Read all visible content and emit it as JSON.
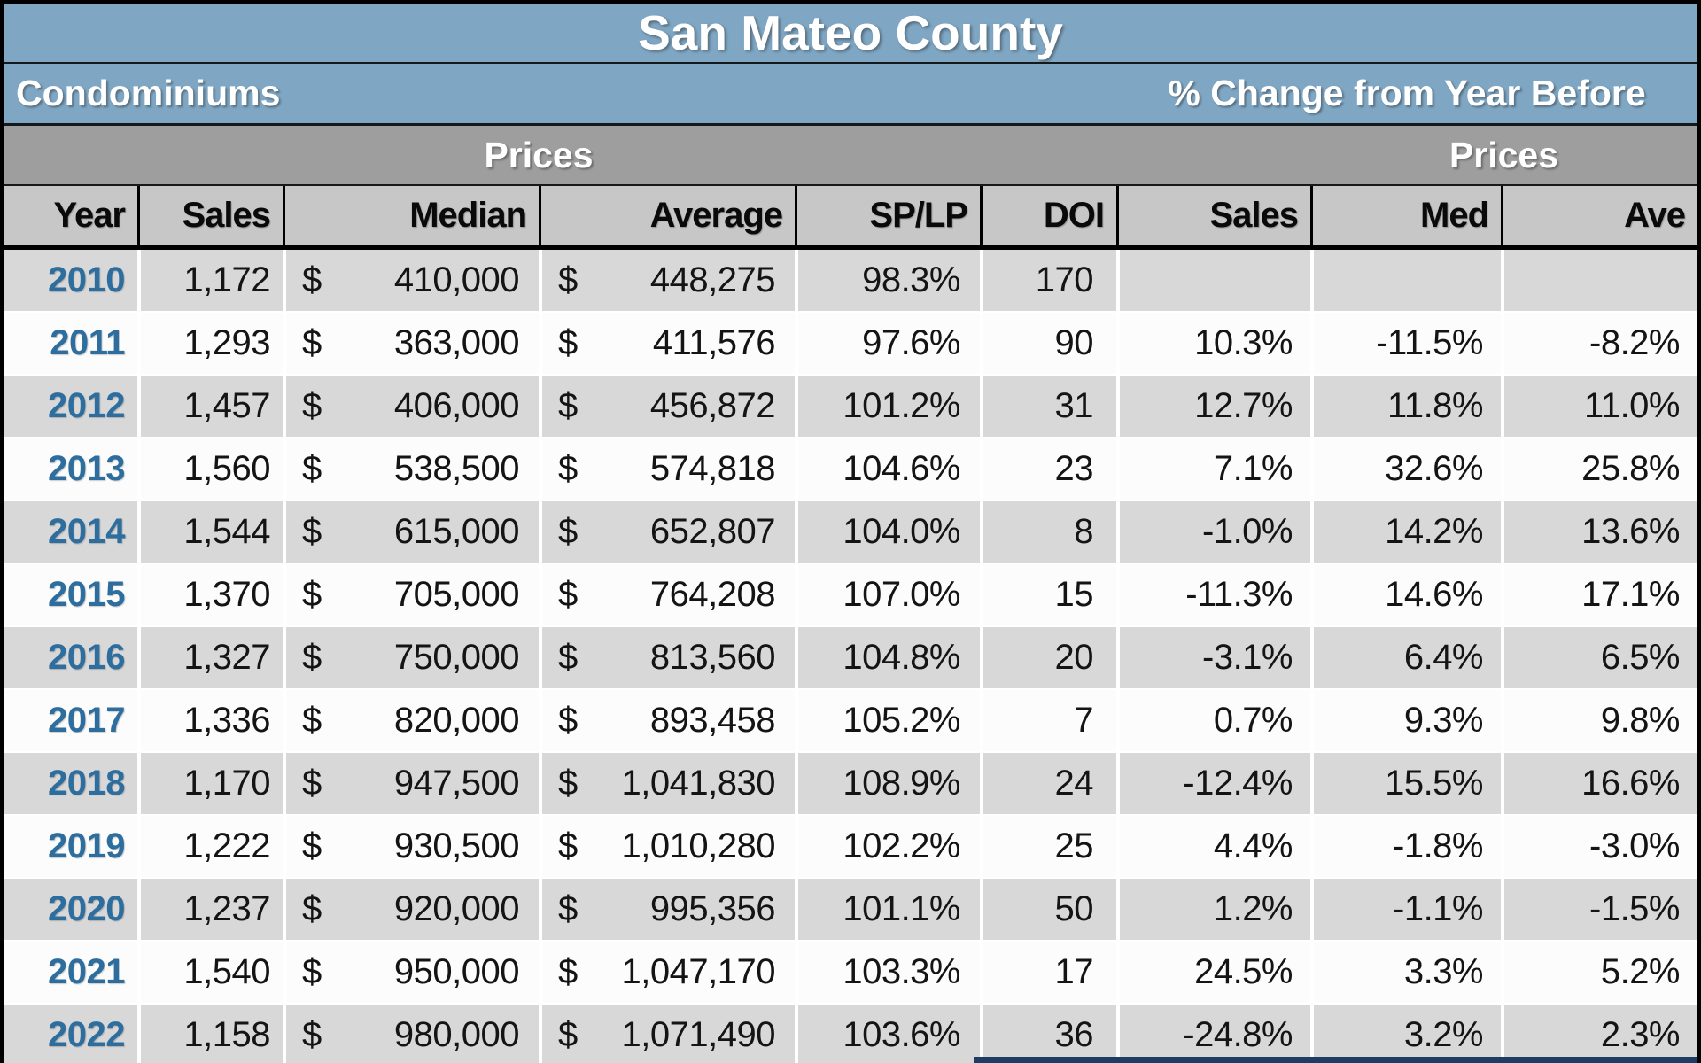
{
  "header": {
    "title": "San Mateo County",
    "left_label": "Condominiums",
    "right_label": "% Change from Year Before",
    "prices_left": "Prices",
    "prices_right": "Prices"
  },
  "table": {
    "currency_symbol": "$",
    "columns": [
      "Year",
      "Sales",
      "Median",
      "Average",
      "SP/LP",
      "DOI",
      "Sales",
      "Med",
      "Ave"
    ],
    "rows": [
      {
        "year": "2010",
        "sales": "1,172",
        "median": "410,000",
        "average": "448,275",
        "sp_lp": "98.3%",
        "doi": "170",
        "sales_chg": "",
        "med_chg": "",
        "ave_chg": ""
      },
      {
        "year": "2011",
        "sales": "1,293",
        "median": "363,000",
        "average": "411,576",
        "sp_lp": "97.6%",
        "doi": "90",
        "sales_chg": "10.3%",
        "med_chg": "-11.5%",
        "ave_chg": "-8.2%"
      },
      {
        "year": "2012",
        "sales": "1,457",
        "median": "406,000",
        "average": "456,872",
        "sp_lp": "101.2%",
        "doi": "31",
        "sales_chg": "12.7%",
        "med_chg": "11.8%",
        "ave_chg": "11.0%"
      },
      {
        "year": "2013",
        "sales": "1,560",
        "median": "538,500",
        "average": "574,818",
        "sp_lp": "104.6%",
        "doi": "23",
        "sales_chg": "7.1%",
        "med_chg": "32.6%",
        "ave_chg": "25.8%"
      },
      {
        "year": "2014",
        "sales": "1,544",
        "median": "615,000",
        "average": "652,807",
        "sp_lp": "104.0%",
        "doi": "8",
        "sales_chg": "-1.0%",
        "med_chg": "14.2%",
        "ave_chg": "13.6%"
      },
      {
        "year": "2015",
        "sales": "1,370",
        "median": "705,000",
        "average": "764,208",
        "sp_lp": "107.0%",
        "doi": "15",
        "sales_chg": "-11.3%",
        "med_chg": "14.6%",
        "ave_chg": "17.1%"
      },
      {
        "year": "2016",
        "sales": "1,327",
        "median": "750,000",
        "average": "813,560",
        "sp_lp": "104.8%",
        "doi": "20",
        "sales_chg": "-3.1%",
        "med_chg": "6.4%",
        "ave_chg": "6.5%"
      },
      {
        "year": "2017",
        "sales": "1,336",
        "median": "820,000",
        "average": "893,458",
        "sp_lp": "105.2%",
        "doi": "7",
        "sales_chg": "0.7%",
        "med_chg": "9.3%",
        "ave_chg": "9.8%"
      },
      {
        "year": "2018",
        "sales": "1,170",
        "median": "947,500",
        "average": "1,041,830",
        "sp_lp": "108.9%",
        "doi": "24",
        "sales_chg": "-12.4%",
        "med_chg": "15.5%",
        "ave_chg": "16.6%"
      },
      {
        "year": "2019",
        "sales": "1,222",
        "median": "930,500",
        "average": "1,010,280",
        "sp_lp": "102.2%",
        "doi": "25",
        "sales_chg": "4.4%",
        "med_chg": "-1.8%",
        "ave_chg": "-3.0%"
      },
      {
        "year": "2020",
        "sales": "1,237",
        "median": "920,000",
        "average": "995,356",
        "sp_lp": "101.1%",
        "doi": "50",
        "sales_chg": "1.2%",
        "med_chg": "-1.1%",
        "ave_chg": "-1.5%"
      },
      {
        "year": "2021",
        "sales": "1,540",
        "median": "950,000",
        "average": "1,047,170",
        "sp_lp": "103.3%",
        "doi": "17",
        "sales_chg": "24.5%",
        "med_chg": "3.3%",
        "ave_chg": "5.2%"
      },
      {
        "year": "2022",
        "sales": "1,158",
        "median": "980,000",
        "average": "1,071,490",
        "sp_lp": "103.6%",
        "doi": "36",
        "sales_chg": "-24.8%",
        "med_chg": "3.2%",
        "ave_chg": "2.3%"
      }
    ]
  },
  "colors": {
    "band_blue": "#7FA7C4",
    "prices_gray": "#9E9E9E",
    "header_gray": "#C7C7C7",
    "row_gray": "#D8D8D8",
    "row_white": "#FCFCFC",
    "year_blue": "#2D6E9E",
    "next_section_navy": "#1E3C64"
  },
  "chart_data": {
    "type": "table",
    "title": "San Mateo County",
    "subtitle": "Condominiums",
    "change_header": "% Change from Year Before",
    "group_headers": [
      "Prices",
      "Prices"
    ],
    "columns": [
      "Year",
      "Sales",
      "Median Price ($)",
      "Average Price ($)",
      "SP/LP",
      "DOI",
      "Sales % Change",
      "Median % Change",
      "Average % Change"
    ],
    "rows": [
      [
        2010,
        1172,
        410000,
        448275,
        98.3,
        170,
        null,
        null,
        null
      ],
      [
        2011,
        1293,
        363000,
        411576,
        97.6,
        90,
        10.3,
        -11.5,
        -8.2
      ],
      [
        2012,
        1457,
        406000,
        456872,
        101.2,
        31,
        12.7,
        11.8,
        11.0
      ],
      [
        2013,
        1560,
        538500,
        574818,
        104.6,
        23,
        7.1,
        32.6,
        25.8
      ],
      [
        2014,
        1544,
        615000,
        652807,
        104.0,
        8,
        -1.0,
        14.2,
        13.6
      ],
      [
        2015,
        1370,
        705000,
        764208,
        107.0,
        15,
        -11.3,
        14.6,
        17.1
      ],
      [
        2016,
        1327,
        750000,
        813560,
        104.8,
        20,
        -3.1,
        6.4,
        6.5
      ],
      [
        2017,
        1336,
        820000,
        893458,
        105.2,
        7,
        0.7,
        9.3,
        9.8
      ],
      [
        2018,
        1170,
        947500,
        1041830,
        108.9,
        24,
        -12.4,
        15.5,
        16.6
      ],
      [
        2019,
        1222,
        930500,
        1010280,
        102.2,
        25,
        4.4,
        -1.8,
        -3.0
      ],
      [
        2020,
        1237,
        920000,
        995356,
        101.1,
        50,
        1.2,
        -1.1,
        -1.5
      ],
      [
        2021,
        1540,
        950000,
        1047170,
        103.3,
        17,
        24.5,
        3.3,
        5.2
      ],
      [
        2022,
        1158,
        980000,
        1071490,
        103.6,
        36,
        -24.8,
        3.2,
        2.3
      ]
    ]
  }
}
